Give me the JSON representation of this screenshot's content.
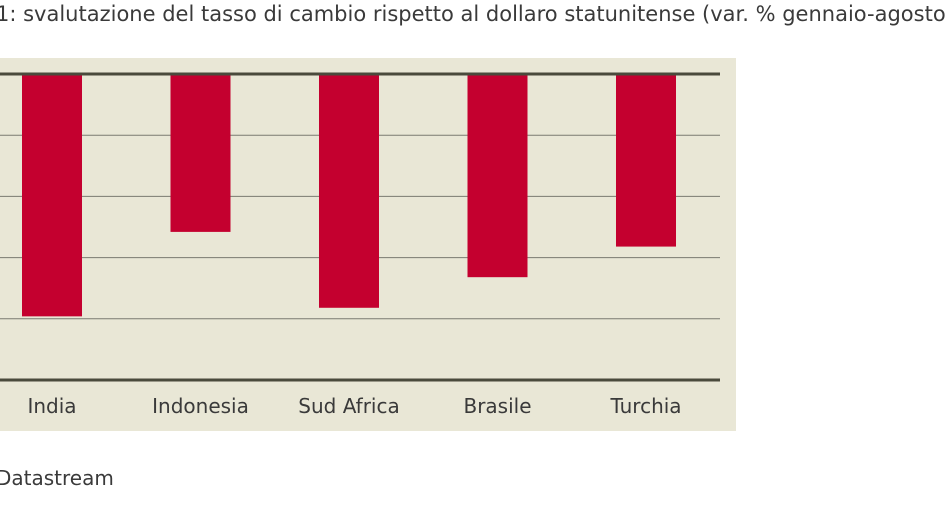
{
  "title": "1: svalutazione del tasso di cambio rispetto al dollaro statunitense (var. % gennaio-agosto",
  "source": "Datastream",
  "colors": {
    "bar": "#c4002f",
    "plot_background": "#e9e7d6",
    "axis": "#4a4a3c",
    "grid": "#7a7a70"
  },
  "chart_data": {
    "type": "bar",
    "categories": [
      "India",
      "Indonesia",
      "Sud Africa",
      "Brasile",
      "Turchia"
    ],
    "values": [
      -19.8,
      -12.9,
      -19.1,
      -16.6,
      -14.1
    ],
    "ylim": [
      -25,
      0
    ],
    "grid": true
  }
}
